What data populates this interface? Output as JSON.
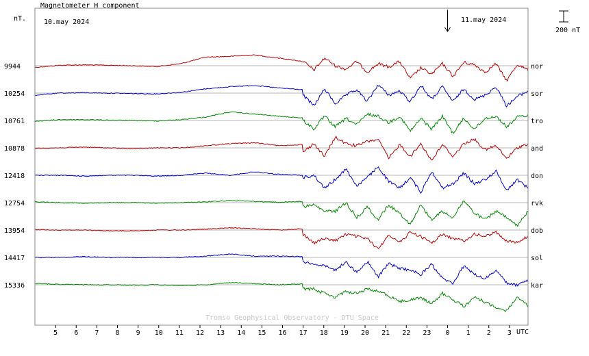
{
  "chart_data": {
    "type": "line",
    "title": "Magnetometer H component",
    "yunit_label": "nT.",
    "start_date_label": "10.may 2024",
    "end_date_label": "11.may 2024",
    "scale_bar_label": "200 nT",
    "scale_bar_value_nT": 200,
    "credit": "Tromso Geophysical Observatory - DTU Space",
    "x_axis_label": "UTC",
    "x_tick_labels": [
      "5",
      "6",
      "7",
      "8",
      "9",
      "10",
      "11",
      "12",
      "13",
      "14",
      "15",
      "16",
      "17",
      "18",
      "19",
      "20",
      "21",
      "22",
      "23",
      "0",
      "1",
      "2",
      "3"
    ],
    "x_hours_range_utc": [
      4.0,
      27.9
    ],
    "day_marker_hour_utc": 24,
    "grid": "horizontal baselines only",
    "series": [
      {
        "name": "nor",
        "baseline_nT": 9944,
        "color": "#bb0000",
        "quiet_dev": [
          4,
          -1,
          -2,
          -1,
          0,
          2,
          -5,
          -20,
          -22,
          -25,
          -18,
          -10
        ],
        "storm_dev": [
          -10,
          10,
          -18,
          0,
          8,
          -10,
          15,
          -5,
          3,
          -10,
          30,
          5,
          20,
          -5,
          25,
          -8,
          -2,
          15,
          -5,
          35,
          -3,
          10
        ]
      },
      {
        "name": "sor",
        "baseline_nT": 10254,
        "color": "#0000cc",
        "quiet_dev": [
          5,
          0,
          -1,
          0,
          1,
          2,
          -2,
          -10,
          -15,
          -18,
          -12,
          -8
        ],
        "storm_dev": [
          5,
          30,
          -10,
          25,
          5,
          -8,
          20,
          -20,
          5,
          -5,
          20,
          -18,
          15,
          -15,
          20,
          -10,
          15,
          5,
          -15,
          30,
          8,
          -5
        ]
      },
      {
        "name": "tro",
        "baseline_nT": 10761,
        "color": "#008800",
        "quiet_dev": [
          2,
          -2,
          -2,
          -1,
          0,
          1,
          -2,
          -8,
          -20,
          -15,
          -10,
          -6
        ],
        "storm_dev": [
          0,
          20,
          -10,
          15,
          -5,
          10,
          -15,
          -10,
          5,
          -10,
          25,
          -5,
          20,
          -10,
          30,
          -5,
          20,
          -5,
          -10,
          15,
          -8,
          -12
        ]
      },
      {
        "name": "and",
        "baseline_nT": 10878,
        "color": "#bb0000",
        "quiet_dev": [
          1,
          0,
          -2,
          0,
          2,
          0,
          0,
          -5,
          -10,
          -12,
          -5,
          -8
        ],
        "storm_dev": [
          10,
          -10,
          20,
          -25,
          -10,
          -5,
          -15,
          -20,
          25,
          -8,
          20,
          -10,
          30,
          -8,
          20,
          -10,
          -20,
          5,
          -5,
          25,
          0,
          -10
        ]
      },
      {
        "name": "don",
        "baseline_nT": 12418,
        "color": "#0000cc",
        "quiet_dev": [
          0,
          0,
          2,
          0,
          0,
          2,
          0,
          -5,
          0,
          -8,
          -2,
          0
        ],
        "storm_dev": [
          5,
          0,
          30,
          10,
          -15,
          25,
          5,
          -20,
          15,
          30,
          5,
          40,
          -10,
          30,
          20,
          -5,
          20,
          10,
          -10,
          35,
          10,
          30
        ]
      },
      {
        "name": "rvk",
        "baseline_nT": 12754,
        "color": "#008800",
        "quiet_dev": [
          -2,
          0,
          1,
          0,
          0,
          1,
          0,
          -2,
          -5,
          -3,
          -1,
          -3
        ],
        "storm_dev": [
          10,
          5,
          20,
          20,
          0,
          35,
          10,
          40,
          5,
          25,
          50,
          5,
          40,
          20,
          35,
          -5,
          25,
          40,
          20,
          35,
          55,
          20
        ]
      },
      {
        "name": "dob",
        "baseline_nT": 13954,
        "color": "#bb0000",
        "quiet_dev": [
          -1,
          0,
          0,
          2,
          2,
          0,
          0,
          -2,
          -5,
          -3,
          0,
          -3
        ],
        "storm_dev": [
          10,
          30,
          20,
          25,
          10,
          15,
          20,
          45,
          10,
          30,
          5,
          15,
          30,
          10,
          20,
          25,
          10,
          15,
          5,
          25,
          30,
          15
        ]
      },
      {
        "name": "sol",
        "baseline_nT": 14417,
        "color": "#0000cc",
        "quiet_dev": [
          0,
          0,
          -2,
          0,
          0,
          0,
          0,
          -3,
          -8,
          -3,
          -3,
          -2
        ],
        "storm_dev": [
          10,
          15,
          20,
          30,
          10,
          35,
          10,
          45,
          15,
          25,
          30,
          40,
          15,
          50,
          60,
          20,
          40,
          50,
          30,
          60,
          65,
          55
        ]
      },
      {
        "name": "kar",
        "baseline_nT": 15336,
        "color": "#008800",
        "quiet_dev": [
          -3,
          -1,
          0,
          0,
          1,
          0,
          2,
          0,
          -5,
          -3,
          0,
          -2
        ],
        "storm_dev": [
          10,
          10,
          20,
          30,
          15,
          20,
          10,
          15,
          25,
          40,
          35,
          30,
          45,
          20,
          35,
          50,
          30,
          40,
          55,
          60,
          30,
          50
        ]
      }
    ]
  }
}
